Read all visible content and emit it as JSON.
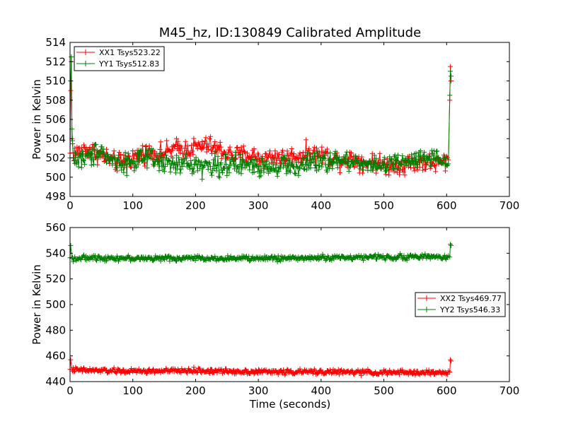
{
  "chart_data": [
    {
      "type": "line",
      "title": "M45_hz, ID:130849 Calibrated Amplitude",
      "xlabel": "",
      "ylabel": "Power in Kelvin",
      "xlim": [
        0,
        700
      ],
      "ylim": [
        498,
        514
      ],
      "xticks": [
        "0",
        "100",
        "200",
        "300",
        "400",
        "500",
        "600",
        "700"
      ],
      "yticks": [
        "498",
        "500",
        "502",
        "504",
        "506",
        "508",
        "510",
        "512",
        "514"
      ],
      "legend_position": "upper-left",
      "series": [
        {
          "name": "XX1 Tsys523.22",
          "color": "#ff0000",
          "marker": "plus",
          "spread": 0.5,
          "x": [
            0,
            1,
            2,
            3,
            5,
            10,
            20,
            30,
            40,
            50,
            60,
            70,
            80,
            90,
            100,
            110,
            120,
            130,
            140,
            150,
            160,
            170,
            180,
            190,
            200,
            210,
            220,
            230,
            240,
            250,
            260,
            270,
            280,
            290,
            300,
            310,
            320,
            330,
            340,
            350,
            360,
            370,
            380,
            390,
            400,
            410,
            420,
            430,
            440,
            450,
            460,
            470,
            480,
            490,
            500,
            510,
            520,
            530,
            540,
            550,
            560,
            570,
            580,
            590,
            600,
            604,
            605,
            606,
            607
          ],
          "y": [
            502.5,
            509,
            512,
            504,
            502.6,
            502.5,
            502.8,
            502.9,
            502.6,
            502.2,
            502.0,
            501.6,
            501.5,
            501.7,
            502.0,
            502.3,
            502.5,
            502.6,
            502.4,
            502.5,
            502.8,
            503.0,
            502.9,
            503.0,
            503.1,
            503.2,
            503.3,
            503.0,
            502.8,
            502.5,
            502.3,
            502.2,
            502.4,
            502.3,
            502.0,
            501.9,
            502.1,
            502.2,
            502.0,
            502.1,
            502.2,
            502.3,
            502.5,
            502.4,
            502.3,
            502.2,
            502.0,
            501.8,
            501.9,
            502.0,
            501.8,
            501.5,
            501.6,
            501.4,
            501.3,
            501.2,
            501.4,
            501.3,
            501.5,
            501.4,
            501.6,
            501.5,
            501.4,
            501.5,
            501.7,
            501.8,
            508,
            511.5,
            510
          ]
        },
        {
          "name": "YY1 Tsys512.83",
          "color": "#008000",
          "marker": "plus",
          "spread": 0.55,
          "x": [
            0,
            1,
            2,
            3,
            5,
            10,
            20,
            30,
            40,
            45,
            50,
            55,
            60,
            70,
            80,
            90,
            100,
            110,
            120,
            130,
            140,
            150,
            160,
            170,
            180,
            190,
            200,
            210,
            220,
            230,
            240,
            250,
            260,
            270,
            280,
            290,
            300,
            310,
            320,
            330,
            340,
            350,
            360,
            370,
            380,
            390,
            400,
            410,
            420,
            430,
            440,
            450,
            460,
            470,
            480,
            490,
            500,
            510,
            520,
            530,
            540,
            550,
            560,
            570,
            580,
            590,
            600,
            604,
            605,
            606,
            607
          ],
          "y": [
            502.0,
            510,
            512.5,
            505,
            502.1,
            501.8,
            501.9,
            502.0,
            502.5,
            503.3,
            503.0,
            502.4,
            502.0,
            501.7,
            501.5,
            501.6,
            501.6,
            501.8,
            501.9,
            501.8,
            501.6,
            501.4,
            501.3,
            501.2,
            501.4,
            501.3,
            501.4,
            501.2,
            501.1,
            501.3,
            501.2,
            501.2,
            501.1,
            501.2,
            501.3,
            501.2,
            501.1,
            501.3,
            501.2,
            501.2,
            501.3,
            501.1,
            501.0,
            501.2,
            501.5,
            501.4,
            501.5,
            501.6,
            501.6,
            501.7,
            501.6,
            501.6,
            501.5,
            501.5,
            501.4,
            501.3,
            501.2,
            501.3,
            501.4,
            501.5,
            501.6,
            501.7,
            501.8,
            501.9,
            501.8,
            501.7,
            501.6,
            501.5,
            508.5,
            511,
            510.5
          ]
        }
      ]
    },
    {
      "type": "line",
      "title": "",
      "xlabel": "Time (seconds)",
      "ylabel": "Power in Kelvin",
      "xlim": [
        0,
        700
      ],
      "ylim": [
        440,
        560
      ],
      "xticks": [
        "0",
        "100",
        "200",
        "300",
        "400",
        "500",
        "600",
        "700"
      ],
      "yticks": [
        "440",
        "460",
        "480",
        "500",
        "520",
        "540",
        "560"
      ],
      "legend_position": "center-right",
      "series": [
        {
          "name": "XX2 Tsys469.77",
          "color": "#ff0000",
          "marker": "plus",
          "spread": 1.0,
          "x": [
            0,
            1,
            3,
            10,
            50,
            100,
            150,
            200,
            250,
            300,
            350,
            400,
            450,
            500,
            550,
            600,
            605,
            606,
            607
          ],
          "y": [
            449.5,
            457,
            449.5,
            449.0,
            448.5,
            448.0,
            448.3,
            448.5,
            448.0,
            447.8,
            447.5,
            447.7,
            447.3,
            447.0,
            447.0,
            447.0,
            447.5,
            457,
            456
          ]
        },
        {
          "name": "YY2 Tsys546.33",
          "color": "#008000",
          "marker": "plus",
          "spread": 1.0,
          "x": [
            0,
            1,
            3,
            10,
            50,
            100,
            150,
            200,
            250,
            300,
            350,
            400,
            450,
            500,
            550,
            600,
            605,
            606,
            607
          ],
          "y": [
            536.5,
            546,
            536.0,
            536.0,
            536.5,
            536.0,
            536.0,
            536.2,
            536.0,
            536.0,
            536.2,
            536.5,
            536.8,
            537.0,
            537.2,
            537.3,
            537.0,
            547,
            546
          ]
        }
      ]
    }
  ]
}
